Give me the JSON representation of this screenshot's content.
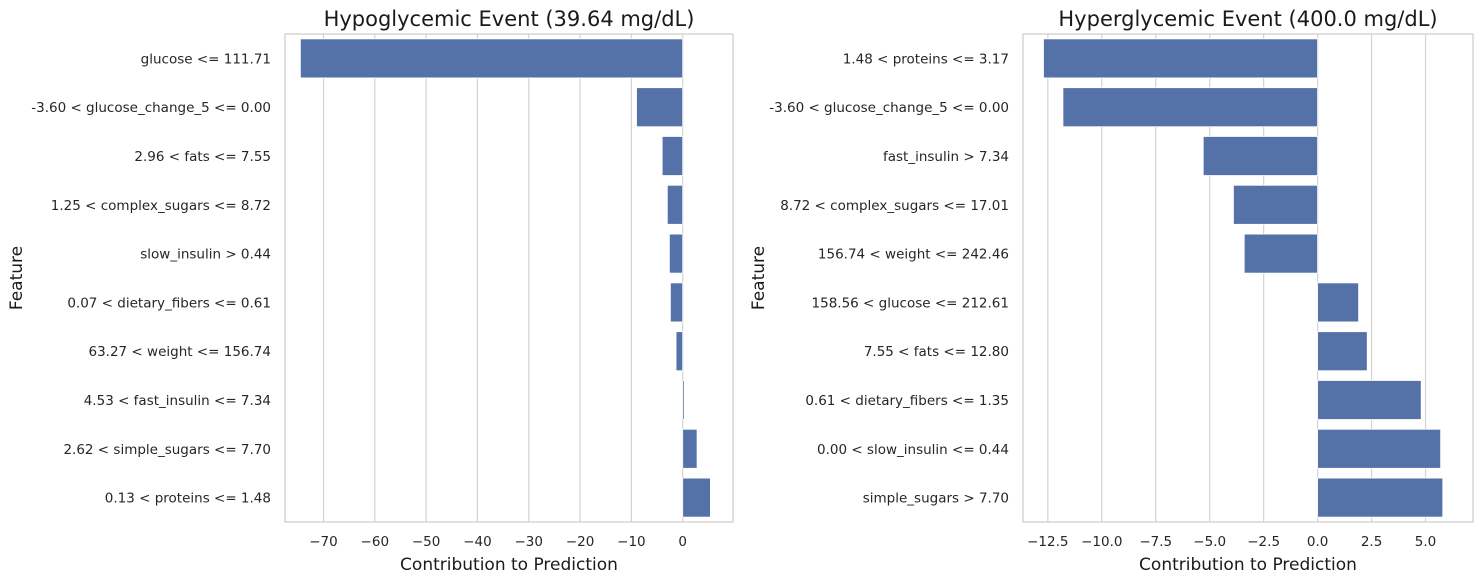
{
  "chart_data": [
    {
      "type": "bar",
      "orientation": "horizontal",
      "title": "Hypoglycemic Event (39.64 mg/dL)",
      "xlabel": "Contribution to Prediction",
      "ylabel": "Feature",
      "xlim": [
        -77.5,
        9.8
      ],
      "xticks": [
        -70,
        -60,
        -50,
        -40,
        -30,
        -20,
        -10,
        0
      ],
      "xtick_labels": [
        "−70",
        "−60",
        "−50",
        "−40",
        "−30",
        "−20",
        "−10",
        "0"
      ],
      "categories": [
        "glucose <= 111.71",
        "-3.60 < glucose_change_5 <= 0.00",
        "2.96 < fats <= 7.55",
        "1.25 < complex_sugars <= 8.72",
        "slow_insulin > 0.44",
        "0.07 < dietary_fibers <= 0.61",
        "63.27 < weight <= 156.74",
        "4.53 < fast_insulin <= 7.34",
        "2.62 < simple_sugars <= 7.70",
        "0.13 < proteins <= 1.48"
      ],
      "values": [
        -74.5,
        -9.0,
        -4.0,
        -3.0,
        -2.6,
        -2.4,
        -1.3,
        0.3,
        2.8,
        5.4
      ],
      "color": "#5572a8",
      "grid": "vertical"
    },
    {
      "type": "bar",
      "orientation": "horizontal",
      "title": "Hyperglycemic Event (400.0 mg/dL)",
      "xlabel": "Contribution to Prediction",
      "ylabel": "Feature",
      "xlim": [
        -13.65,
        7.2
      ],
      "xticks": [
        -12.5,
        -10.0,
        -7.5,
        -5.0,
        -2.5,
        0.0,
        2.5,
        5.0
      ],
      "xtick_labels": [
        "−12.5",
        "−10.0",
        "−7.5",
        "−5.0",
        "−2.5",
        "0.0",
        "2.5",
        "5.0"
      ],
      "categories": [
        "1.48 < proteins <= 3.17",
        "-3.60 < glucose_change_5 <= 0.00",
        "fast_insulin > 7.34",
        "8.72 < complex_sugars <= 17.01",
        "156.74 < weight <= 242.46",
        "158.56 < glucose <= 212.61",
        "7.55 < fats <= 12.80",
        "0.61 < dietary_fibers <= 1.35",
        "0.00 < slow_insulin <= 0.44",
        "simple_sugars > 7.70"
      ],
      "values": [
        -12.7,
        -11.8,
        -5.3,
        -3.9,
        -3.4,
        1.9,
        2.3,
        4.8,
        5.7,
        5.8
      ],
      "color": "#5572a8",
      "grid": "vertical"
    }
  ]
}
